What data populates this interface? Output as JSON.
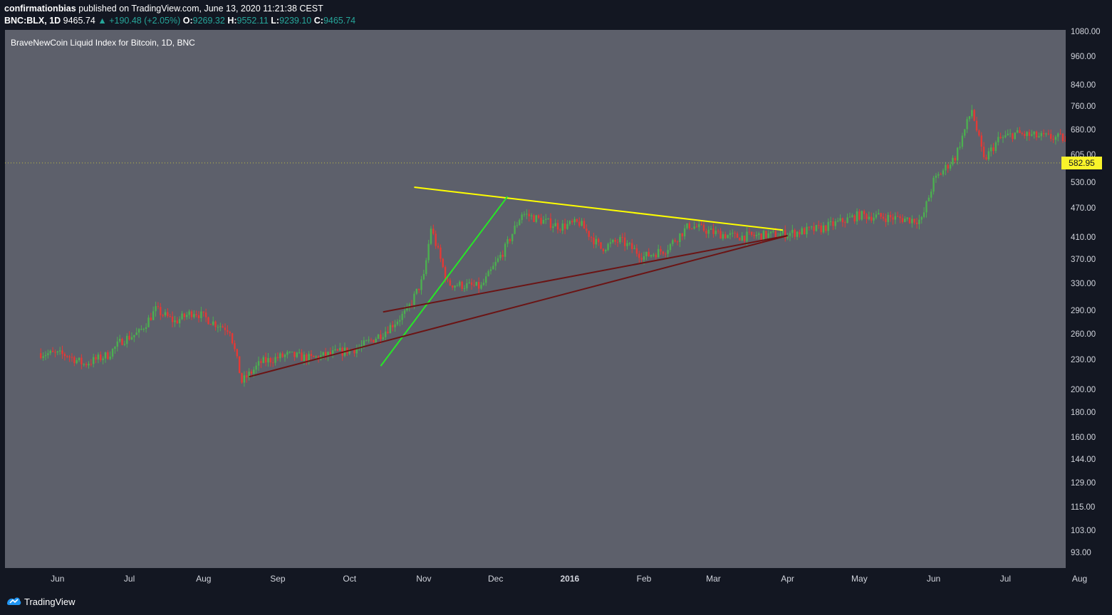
{
  "header": {
    "author": "confirmationbias",
    "published": "published on TradingView.com, June 13, 2020 11:21:38 CEST",
    "symbol": "BNC:BLX, 1D",
    "last": "9465.74",
    "change": "+190.48 (+2.05%)",
    "o_label": "O:",
    "o_value": "9269.32",
    "h_label": "H:",
    "h_value": "9552.11",
    "l_label": "L:",
    "l_value": "9239.10",
    "c_label": "C:",
    "c_value": "9465.74"
  },
  "chart_data": {
    "type": "candlestick",
    "title": "BraveNewCoin Liquid Index for Bitcoin, 1D, BNC",
    "y_scale": "log",
    "ylim": [
      88,
      1080
    ],
    "y_ticks": [
      "1080.00",
      "960.00",
      "840.00",
      "760.00",
      "680.00",
      "605.00",
      "530.00",
      "470.00",
      "410.00",
      "370.00",
      "330.00",
      "290.00",
      "260.00",
      "230.00",
      "200.00",
      "180.00",
      "160.00",
      "144.00",
      "129.00",
      "115.00",
      "103.00",
      "93.00"
    ],
    "x_ticks": [
      "Jun",
      "Jul",
      "Aug",
      "Sep",
      "Oct",
      "Nov",
      "Dec",
      "2016",
      "Feb",
      "Mar",
      "Apr",
      "May",
      "Jun",
      "Jul",
      "Aug"
    ],
    "last_price": "582.95",
    "price_path": [
      [
        "2015-05-25",
        238
      ],
      [
        "2015-06-05",
        236
      ],
      [
        "2015-06-12",
        226
      ],
      [
        "2015-06-22",
        236
      ],
      [
        "2015-06-28",
        253
      ],
      [
        "2015-07-05",
        262
      ],
      [
        "2015-07-12",
        292
      ],
      [
        "2015-07-20",
        276
      ],
      [
        "2015-07-28",
        290
      ],
      [
        "2015-08-05",
        275
      ],
      [
        "2015-08-12",
        266
      ],
      [
        "2015-08-17",
        208
      ],
      [
        "2015-08-25",
        228
      ],
      [
        "2015-09-05",
        236
      ],
      [
        "2015-09-15",
        232
      ],
      [
        "2015-09-25",
        238
      ],
      [
        "2015-10-05",
        244
      ],
      [
        "2015-10-15",
        262
      ],
      [
        "2015-10-25",
        290
      ],
      [
        "2015-11-01",
        340
      ],
      [
        "2015-11-04",
        430
      ],
      [
        "2015-11-11",
        330
      ],
      [
        "2015-11-25",
        325
      ],
      [
        "2015-12-05",
        390
      ],
      [
        "2015-12-12",
        460
      ],
      [
        "2015-12-20",
        445
      ],
      [
        "2015-12-28",
        432
      ],
      [
        "2016-01-05",
        440
      ],
      [
        "2016-01-14",
        390
      ],
      [
        "2016-01-22",
        405
      ],
      [
        "2016-02-01",
        375
      ],
      [
        "2016-02-10",
        388
      ],
      [
        "2016-02-20",
        435
      ],
      [
        "2016-03-01",
        420
      ],
      [
        "2016-03-10",
        412
      ],
      [
        "2016-03-20",
        414
      ],
      [
        "2016-04-01",
        418
      ],
      [
        "2016-04-15",
        428
      ],
      [
        "2016-05-01",
        456
      ],
      [
        "2016-05-15",
        450
      ],
      [
        "2016-05-27",
        445
      ],
      [
        "2016-06-01",
        535
      ],
      [
        "2016-06-10",
        600
      ],
      [
        "2016-06-17",
        750
      ],
      [
        "2016-06-22",
        590
      ],
      [
        "2016-06-28",
        650
      ],
      [
        "2016-07-05",
        670
      ],
      [
        "2016-07-15",
        660
      ],
      [
        "2016-07-25",
        655
      ],
      [
        "2016-08-02",
        545
      ],
      [
        "2016-08-05",
        582.95
      ]
    ],
    "drawings": [
      {
        "color": "#ffff00",
        "from": [
          "2015-10-28",
          520
        ],
        "to": [
          "2016-03-30",
          425
        ]
      },
      {
        "color": "#26e826",
        "from": [
          "2015-10-14",
          224
        ],
        "to": [
          "2015-12-06",
          498
        ]
      },
      {
        "color": "#6b1414",
        "from": [
          "2015-08-20",
          213
        ],
        "to": [
          "2016-04-01",
          414
        ]
      },
      {
        "color": "#6b1414",
        "from": [
          "2015-10-15",
          289
        ],
        "to": [
          "2016-04-01",
          414
        ]
      }
    ]
  },
  "footer": {
    "brand": "TradingView"
  }
}
